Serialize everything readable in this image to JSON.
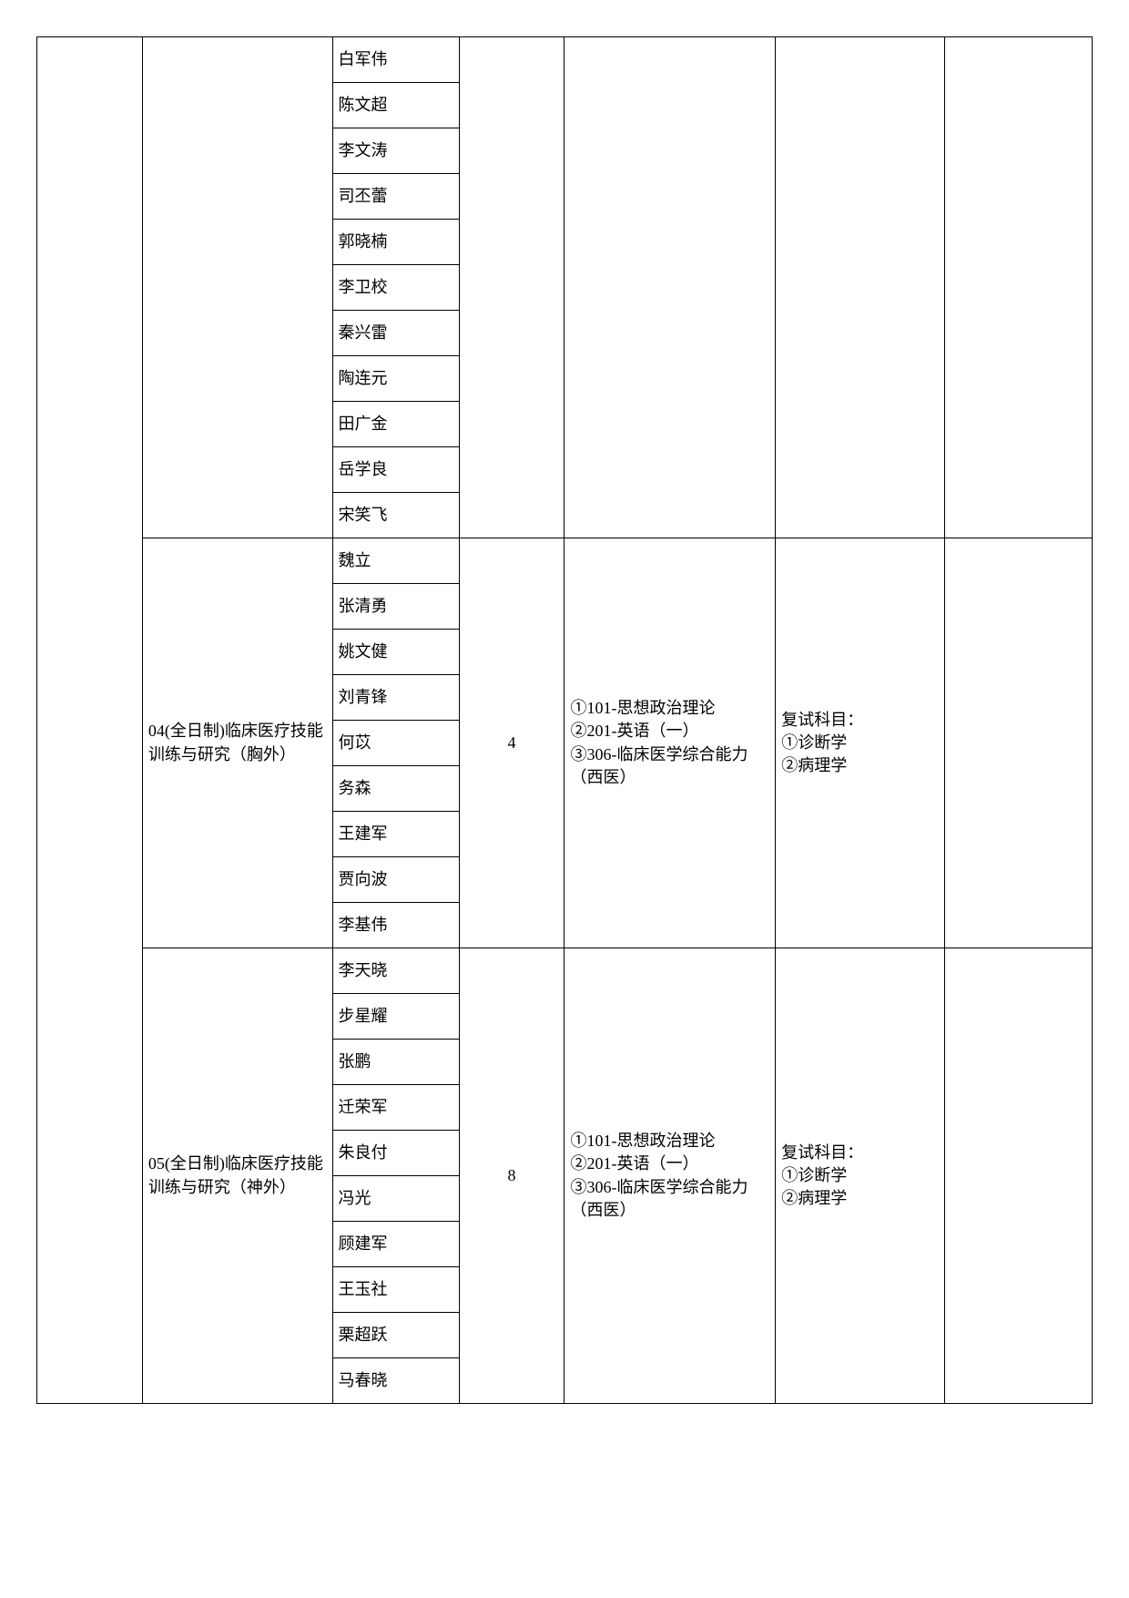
{
  "sections": [
    {
      "direction": "",
      "quota": "",
      "exam": "",
      "retest": "",
      "names": [
        "白军伟",
        "陈文超",
        "李文涛",
        "司丕蕾",
        "郭晓楠",
        "李卫校",
        "秦兴雷",
        "陶连元",
        "田广金",
        "岳学良",
        "宋笑飞"
      ]
    },
    {
      "direction": "04(全日制)临床医疗技能训练与研究（胸外）",
      "quota": "4",
      "exam": "①101-思想政治理论\n②201-英语（一）\n③306-临床医学综合能力（西医）",
      "retest": "复试科目：\n①诊断学\n②病理学",
      "names": [
        "魏立",
        "张清勇",
        "姚文健",
        "刘青锋",
        "何苡",
        "务森",
        "王建军",
        "贾向波",
        "李基伟"
      ]
    },
    {
      "direction": "05(全日制)临床医疗技能训练与研究（神外）",
      "quota": "8",
      "exam": "①101-思想政治理论\n②201-英语（一）\n③306-临床医学综合能力（西医）",
      "retest": "复试科目：\n①诊断学\n②病理学",
      "names": [
        "李天晓",
        "步星耀",
        "张鹏",
        "迁荣军",
        "朱良付",
        "冯光",
        "顾建军",
        "王玉社",
        "栗超跃",
        "马春晓"
      ]
    }
  ]
}
